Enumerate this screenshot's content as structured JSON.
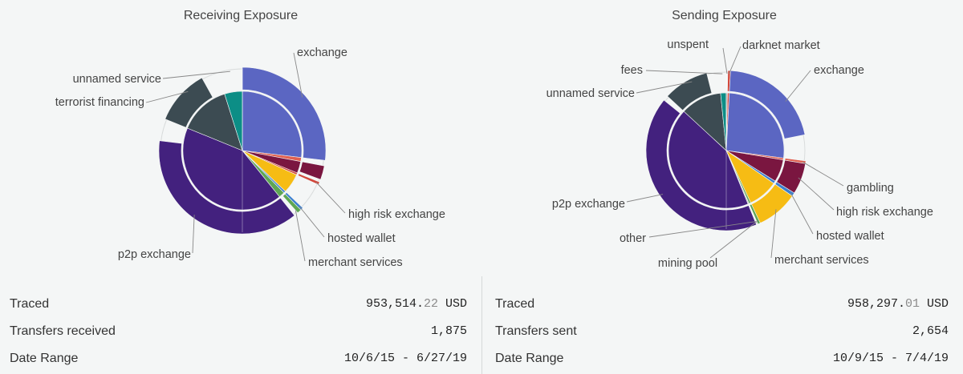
{
  "panels": [
    {
      "title": "Receiving Exposure",
      "stats": {
        "traced_label": "Traced",
        "traced_main": "953,514.",
        "traced_cents": "22",
        "traced_currency": " USD",
        "transfers_label": "Transfers received",
        "transfers_value": "1,875",
        "date_label": "Date Range",
        "date_value": "10/6/15 - 6/27/19"
      }
    },
    {
      "title": "Sending Exposure",
      "stats": {
        "traced_label": "Traced",
        "traced_main": "958,297.",
        "traced_cents": "01",
        "traced_currency": " USD",
        "transfers_label": "Transfers sent",
        "transfers_value": "2,654",
        "date_label": "Date Range",
        "date_value": "10/9/15 - 7/4/19"
      }
    }
  ],
  "chart_data": [
    {
      "type": "sunburst",
      "title": "Receiving Exposure",
      "categories": [
        {
          "name": "exchange",
          "inner_share": 0.25,
          "outer_share": 0.1,
          "color": "#5b66c2"
        },
        {
          "name": "",
          "inner_share": 0.01,
          "outer_share": 0.0,
          "color": "#e06050"
        },
        {
          "name": "",
          "inner_share": 0.03,
          "outer_share": 0.01,
          "color": "#7a1640"
        },
        {
          "name": "high risk exchange",
          "inner_share": 0.005,
          "outer_share": 0.005,
          "color": "#d2473b"
        },
        {
          "name": "",
          "inner_share": 0.05,
          "outer_share": 0.0,
          "color": "#f6bc14"
        },
        {
          "name": "hosted wallet",
          "inner_share": 0.005,
          "outer_share": 0.005,
          "color": "#3b7fd0"
        },
        {
          "name": "merchant services",
          "inner_share": 0.015,
          "outer_share": 0.003,
          "color": "#5ea654"
        },
        {
          "name": "p2p exchange",
          "inner_share": 0.39,
          "outer_share": 0.14,
          "color": "#43217e"
        },
        {
          "name": "terrorist financing",
          "inner_share": 0.13,
          "outer_share": 0.04,
          "color": "#3c4b52"
        },
        {
          "name": "unnamed service",
          "inner_share": 0.045,
          "outer_share": 0.0,
          "color": "#0c8e86"
        }
      ]
    },
    {
      "type": "sunburst",
      "title": "Sending Exposure",
      "categories": [
        {
          "name": "darknet market",
          "inner_share": 0.005,
          "outer_share": 0.003,
          "color": "#d2473b"
        },
        {
          "name": "exchange",
          "inner_share": 0.25,
          "outer_share": 0.08,
          "color": "#5b66c2"
        },
        {
          "name": "gambling",
          "inner_share": 0.005,
          "outer_share": 0.005,
          "color": "#e06050"
        },
        {
          "name": "high risk exchange",
          "inner_share": 0.06,
          "outer_share": 0.035,
          "color": "#7a1640"
        },
        {
          "name": "hosted wallet",
          "inner_share": 0.007,
          "outer_share": 0.005,
          "color": "#3b7fd0"
        },
        {
          "name": "merchant services",
          "inner_share": 0.08,
          "outer_share": 0.04,
          "color": "#f6bc14"
        },
        {
          "name": "mining pool",
          "inner_share": 0.005,
          "outer_share": 0.003,
          "color": "#5ea654"
        },
        {
          "name": "other",
          "inner_share": 0.003,
          "outer_share": 0.0,
          "color": "#c7c7c7"
        },
        {
          "name": "p2p exchange",
          "inner_share": 0.41,
          "outer_share": 0.16,
          "color": "#43217e"
        },
        {
          "name": "unnamed service",
          "inner_share": 0.11,
          "outer_share": 0.035,
          "color": "#3c4b52"
        },
        {
          "name": "fees",
          "inner_share": 0.015,
          "outer_share": 0.0,
          "color": "#0c8e86"
        },
        {
          "name": "unspent",
          "inner_share": 0.003,
          "outer_share": 0.0,
          "color": "#9a9a9a"
        }
      ]
    }
  ]
}
